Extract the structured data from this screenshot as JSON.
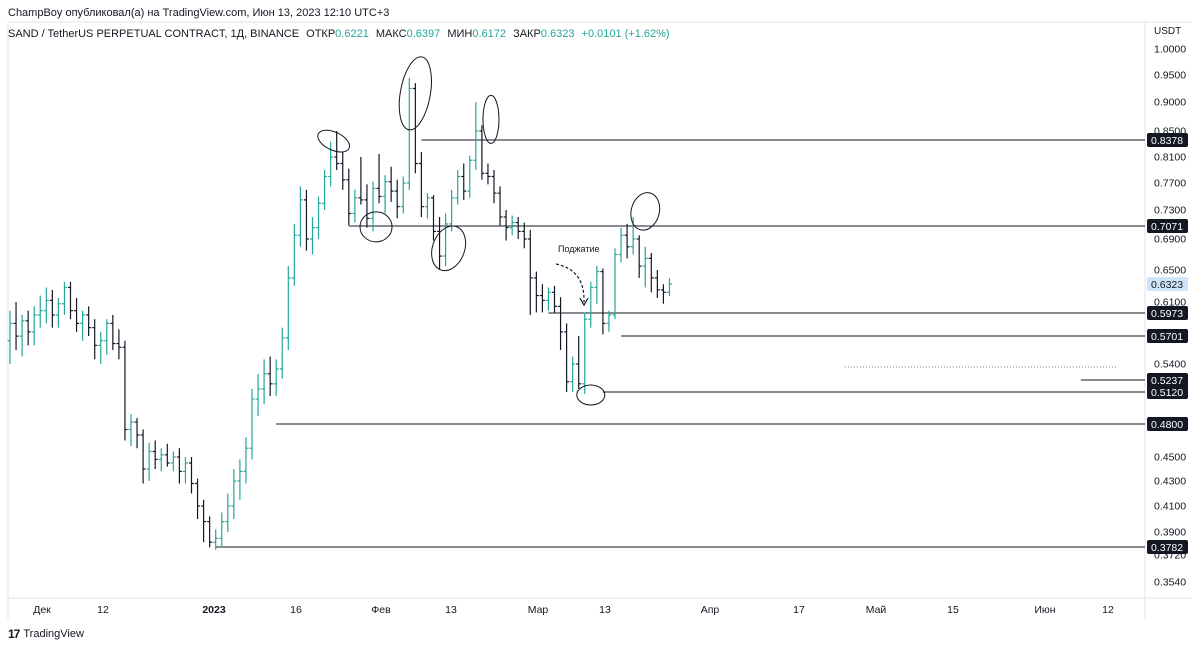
{
  "header": {
    "published": "ChampBoy опубликовал(а) на TradingView.com, Июн 13, 2023 12:10 UTC+3",
    "symbol": "SAND / TetherUS PERPETUAL CONTRACT, 1Д, BINANCE",
    "open_label": "ОТКР",
    "open": "0.6221",
    "high_label": "МАКС",
    "high": "0.6397",
    "low_label": "МИН",
    "low": "0.6172",
    "close_label": "ЗАКР",
    "close": "0.6323",
    "change": "+0.0101 (+1.62%)"
  },
  "footer": {
    "brand": "TradingView"
  },
  "chart_data": {
    "type": "ohlc",
    "currency": "USDT",
    "price_axis_ticks": [
      "1.0000",
      "0.9500",
      "0.9000",
      "0.8500",
      "0.8100",
      "0.7700",
      "0.7300",
      "0.6900",
      "0.6500",
      "0.6100",
      "0.5400",
      "0.4500",
      "0.4300",
      "0.4100",
      "0.3900",
      "0.3720",
      "0.3540"
    ],
    "time_axis_ticks": [
      "Дек",
      "12",
      "2023",
      "16",
      "Фев",
      "13",
      "Мар",
      "13",
      "Апр",
      "17",
      "Май",
      "15",
      "Июн",
      "12"
    ],
    "level_labels": [
      "0.8378",
      "0.7071",
      "0.6323",
      "0.5973",
      "0.5701",
      "0.5237",
      "0.5120",
      "0.4800",
      "0.3782"
    ],
    "annotation": "Поджатие",
    "colors": {
      "up": "#26a69a",
      "down": "#131722",
      "line": "#131722",
      "last": "#cfe4f7"
    },
    "bars": [
      {
        "o": 0.565,
        "h": 0.6,
        "l": 0.54,
        "c": 0.585
      },
      {
        "o": 0.585,
        "h": 0.61,
        "l": 0.555,
        "c": 0.57
      },
      {
        "o": 0.57,
        "h": 0.595,
        "l": 0.548,
        "c": 0.588
      },
      {
        "o": 0.588,
        "h": 0.6,
        "l": 0.56,
        "c": 0.575
      },
      {
        "o": 0.575,
        "h": 0.605,
        "l": 0.56,
        "c": 0.595
      },
      {
        "o": 0.595,
        "h": 0.618,
        "l": 0.58,
        "c": 0.6
      },
      {
        "o": 0.6,
        "h": 0.628,
        "l": 0.585,
        "c": 0.612
      },
      {
        "o": 0.612,
        "h": 0.625,
        "l": 0.58,
        "c": 0.595
      },
      {
        "o": 0.595,
        "h": 0.615,
        "l": 0.58,
        "c": 0.608
      },
      {
        "o": 0.608,
        "h": 0.635,
        "l": 0.595,
        "c": 0.628
      },
      {
        "o": 0.628,
        "h": 0.635,
        "l": 0.59,
        "c": 0.6
      },
      {
        "o": 0.6,
        "h": 0.615,
        "l": 0.575,
        "c": 0.585
      },
      {
        "o": 0.585,
        "h": 0.6,
        "l": 0.565,
        "c": 0.595
      },
      {
        "o": 0.595,
        "h": 0.605,
        "l": 0.57,
        "c": 0.58
      },
      {
        "o": 0.58,
        "h": 0.59,
        "l": 0.545,
        "c": 0.56
      },
      {
        "o": 0.56,
        "h": 0.575,
        "l": 0.54,
        "c": 0.565
      },
      {
        "o": 0.565,
        "h": 0.59,
        "l": 0.55,
        "c": 0.585
      },
      {
        "o": 0.585,
        "h": 0.595,
        "l": 0.555,
        "c": 0.562
      },
      {
        "o": 0.562,
        "h": 0.578,
        "l": 0.545,
        "c": 0.558
      },
      {
        "o": 0.558,
        "h": 0.565,
        "l": 0.465,
        "c": 0.475
      },
      {
        "o": 0.475,
        "h": 0.49,
        "l": 0.46,
        "c": 0.482
      },
      {
        "o": 0.482,
        "h": 0.486,
        "l": 0.458,
        "c": 0.47
      },
      {
        "o": 0.47,
        "h": 0.475,
        "l": 0.428,
        "c": 0.44
      },
      {
        "o": 0.44,
        "h": 0.463,
        "l": 0.43,
        "c": 0.455
      },
      {
        "o": 0.455,
        "h": 0.465,
        "l": 0.44,
        "c": 0.448
      },
      {
        "o": 0.448,
        "h": 0.458,
        "l": 0.438,
        "c": 0.452
      },
      {
        "o": 0.452,
        "h": 0.462,
        "l": 0.442,
        "c": 0.445
      },
      {
        "o": 0.445,
        "h": 0.455,
        "l": 0.438,
        "c": 0.45
      },
      {
        "o": 0.45,
        "h": 0.458,
        "l": 0.428,
        "c": 0.438
      },
      {
        "o": 0.438,
        "h": 0.45,
        "l": 0.428,
        "c": 0.445
      },
      {
        "o": 0.445,
        "h": 0.45,
        "l": 0.42,
        "c": 0.428
      },
      {
        "o": 0.428,
        "h": 0.432,
        "l": 0.4,
        "c": 0.41
      },
      {
        "o": 0.41,
        "h": 0.415,
        "l": 0.382,
        "c": 0.398
      },
      {
        "o": 0.398,
        "h": 0.402,
        "l": 0.378,
        "c": 0.382
      },
      {
        "o": 0.382,
        "h": 0.392,
        "l": 0.376,
        "c": 0.385
      },
      {
        "o": 0.385,
        "h": 0.405,
        "l": 0.378,
        "c": 0.398
      },
      {
        "o": 0.398,
        "h": 0.42,
        "l": 0.39,
        "c": 0.41
      },
      {
        "o": 0.41,
        "h": 0.44,
        "l": 0.4,
        "c": 0.43
      },
      {
        "o": 0.43,
        "h": 0.448,
        "l": 0.415,
        "c": 0.438
      },
      {
        "o": 0.438,
        "h": 0.468,
        "l": 0.428,
        "c": 0.458
      },
      {
        "o": 0.458,
        "h": 0.515,
        "l": 0.448,
        "c": 0.505
      },
      {
        "o": 0.505,
        "h": 0.53,
        "l": 0.488,
        "c": 0.515
      },
      {
        "o": 0.515,
        "h": 0.545,
        "l": 0.5,
        "c": 0.53
      },
      {
        "o": 0.53,
        "h": 0.548,
        "l": 0.508,
        "c": 0.52
      },
      {
        "o": 0.52,
        "h": 0.545,
        "l": 0.508,
        "c": 0.535
      },
      {
        "o": 0.535,
        "h": 0.58,
        "l": 0.525,
        "c": 0.568
      },
      {
        "o": 0.568,
        "h": 0.655,
        "l": 0.555,
        "c": 0.64
      },
      {
        "o": 0.64,
        "h": 0.71,
        "l": 0.63,
        "c": 0.695
      },
      {
        "o": 0.695,
        "h": 0.765,
        "l": 0.68,
        "c": 0.745
      },
      {
        "o": 0.745,
        "h": 0.76,
        "l": 0.675,
        "c": 0.69
      },
      {
        "o": 0.69,
        "h": 0.72,
        "l": 0.67,
        "c": 0.705
      },
      {
        "o": 0.705,
        "h": 0.75,
        "l": 0.69,
        "c": 0.74
      },
      {
        "o": 0.74,
        "h": 0.79,
        "l": 0.73,
        "c": 0.78
      },
      {
        "o": 0.78,
        "h": 0.835,
        "l": 0.765,
        "c": 0.81
      },
      {
        "o": 0.81,
        "h": 0.85,
        "l": 0.79,
        "c": 0.8
      },
      {
        "o": 0.8,
        "h": 0.818,
        "l": 0.76,
        "c": 0.775
      },
      {
        "o": 0.775,
        "h": 0.792,
        "l": 0.708,
        "c": 0.725
      },
      {
        "o": 0.725,
        "h": 0.76,
        "l": 0.712,
        "c": 0.748
      },
      {
        "o": 0.748,
        "h": 0.81,
        "l": 0.738,
        "c": 0.745
      },
      {
        "o": 0.745,
        "h": 0.768,
        "l": 0.705,
        "c": 0.718
      },
      {
        "o": 0.718,
        "h": 0.772,
        "l": 0.7,
        "c": 0.762
      },
      {
        "o": 0.762,
        "h": 0.815,
        "l": 0.74,
        "c": 0.75
      },
      {
        "o": 0.75,
        "h": 0.782,
        "l": 0.725,
        "c": 0.772
      },
      {
        "o": 0.772,
        "h": 0.795,
        "l": 0.742,
        "c": 0.758
      },
      {
        "o": 0.758,
        "h": 0.775,
        "l": 0.718,
        "c": 0.735
      },
      {
        "o": 0.735,
        "h": 0.78,
        "l": 0.725,
        "c": 0.77
      },
      {
        "o": 0.77,
        "h": 0.945,
        "l": 0.76,
        "c": 0.925
      },
      {
        "o": 0.925,
        "h": 0.935,
        "l": 0.785,
        "c": 0.8
      },
      {
        "o": 0.8,
        "h": 0.818,
        "l": 0.72,
        "c": 0.735
      },
      {
        "o": 0.735,
        "h": 0.755,
        "l": 0.718,
        "c": 0.748
      },
      {
        "o": 0.748,
        "h": 0.752,
        "l": 0.688,
        "c": 0.7
      },
      {
        "o": 0.7,
        "h": 0.72,
        "l": 0.65,
        "c": 0.668
      },
      {
        "o": 0.668,
        "h": 0.725,
        "l": 0.655,
        "c": 0.71
      },
      {
        "o": 0.71,
        "h": 0.76,
        "l": 0.7,
        "c": 0.748
      },
      {
        "o": 0.748,
        "h": 0.79,
        "l": 0.738,
        "c": 0.78
      },
      {
        "o": 0.78,
        "h": 0.8,
        "l": 0.745,
        "c": 0.758
      },
      {
        "o": 0.758,
        "h": 0.812,
        "l": 0.748,
        "c": 0.805
      },
      {
        "o": 0.805,
        "h": 0.9,
        "l": 0.79,
        "c": 0.85
      },
      {
        "o": 0.85,
        "h": 0.86,
        "l": 0.775,
        "c": 0.785
      },
      {
        "o": 0.785,
        "h": 0.8,
        "l": 0.768,
        "c": 0.78
      },
      {
        "o": 0.78,
        "h": 0.79,
        "l": 0.74,
        "c": 0.755
      },
      {
        "o": 0.755,
        "h": 0.765,
        "l": 0.708,
        "c": 0.72
      },
      {
        "o": 0.72,
        "h": 0.73,
        "l": 0.688,
        "c": 0.705
      },
      {
        "o": 0.705,
        "h": 0.722,
        "l": 0.695,
        "c": 0.712
      },
      {
        "o": 0.712,
        "h": 0.72,
        "l": 0.69,
        "c": 0.7
      },
      {
        "o": 0.7,
        "h": 0.712,
        "l": 0.678,
        "c": 0.69
      },
      {
        "o": 0.69,
        "h": 0.702,
        "l": 0.595,
        "c": 0.64
      },
      {
        "o": 0.64,
        "h": 0.648,
        "l": 0.598,
        "c": 0.618
      },
      {
        "o": 0.618,
        "h": 0.632,
        "l": 0.598,
        "c": 0.612
      },
      {
        "o": 0.612,
        "h": 0.628,
        "l": 0.6,
        "c": 0.622
      },
      {
        "o": 0.622,
        "h": 0.63,
        "l": 0.598,
        "c": 0.605
      },
      {
        "o": 0.605,
        "h": 0.616,
        "l": 0.555,
        "c": 0.575
      },
      {
        "o": 0.575,
        "h": 0.585,
        "l": 0.512,
        "c": 0.522
      },
      {
        "o": 0.522,
        "h": 0.548,
        "l": 0.512,
        "c": 0.54
      },
      {
        "o": 0.54,
        "h": 0.57,
        "l": 0.515,
        "c": 0.52
      },
      {
        "o": 0.52,
        "h": 0.598,
        "l": 0.51,
        "c": 0.59
      },
      {
        "o": 0.59,
        "h": 0.635,
        "l": 0.58,
        "c": 0.628
      },
      {
        "o": 0.628,
        "h": 0.655,
        "l": 0.608,
        "c": 0.648
      },
      {
        "o": 0.648,
        "h": 0.652,
        "l": 0.572,
        "c": 0.585
      },
      {
        "o": 0.585,
        "h": 0.6,
        "l": 0.575,
        "c": 0.595
      },
      {
        "o": 0.595,
        "h": 0.678,
        "l": 0.59,
        "c": 0.67
      },
      {
        "o": 0.67,
        "h": 0.705,
        "l": 0.66,
        "c": 0.695
      },
      {
        "o": 0.695,
        "h": 0.71,
        "l": 0.665,
        "c": 0.68
      },
      {
        "o": 0.68,
        "h": 0.72,
        "l": 0.67,
        "c": 0.69
      },
      {
        "o": 0.69,
        "h": 0.695,
        "l": 0.64,
        "c": 0.655
      },
      {
        "o": 0.655,
        "h": 0.68,
        "l": 0.628,
        "c": 0.665
      },
      {
        "o": 0.665,
        "h": 0.672,
        "l": 0.622,
        "c": 0.64
      },
      {
        "o": 0.64,
        "h": 0.65,
        "l": 0.615,
        "c": 0.625
      },
      {
        "o": 0.625,
        "h": 0.632,
        "l": 0.608,
        "c": 0.622
      },
      {
        "o": 0.6221,
        "h": 0.6397,
        "l": 0.6172,
        "c": 0.6323
      }
    ],
    "levels": [
      {
        "price": 0.8378,
        "from_bar": 68,
        "label": "0.8378"
      },
      {
        "price": 0.7071,
        "from_bar": 56,
        "label": "0.7071"
      },
      {
        "price": 0.5973,
        "from_bar": 89,
        "label": "0.5973"
      },
      {
        "price": 0.5701,
        "from_bar": 101,
        "label": "0.5701"
      },
      {
        "price": 0.5237,
        "from_bar": 177,
        "label": "0.5237"
      },
      {
        "price": 0.512,
        "from_bar": 98,
        "label": "0.5120"
      },
      {
        "price": 0.48,
        "from_bar": 44,
        "label": "0.4800"
      },
      {
        "price": 0.3782,
        "from_bar": 34,
        "label": "0.3782"
      }
    ],
    "dotted_line": {
      "price": 0.537,
      "from_bar": 138,
      "to_bar": 183
    },
    "ellipses": [
      {
        "bar": 53.5,
        "price": 0.836
      },
      {
        "bar": 60.5,
        "price": 0.706
      },
      {
        "bar": 67,
        "price": 0.916
      },
      {
        "bar": 72.5,
        "price": 0.678
      },
      {
        "bar": 79.5,
        "price": 0.87
      },
      {
        "bar": 96,
        "price": 0.509
      },
      {
        "bar": 105,
        "price": 0.728
      }
    ]
  }
}
